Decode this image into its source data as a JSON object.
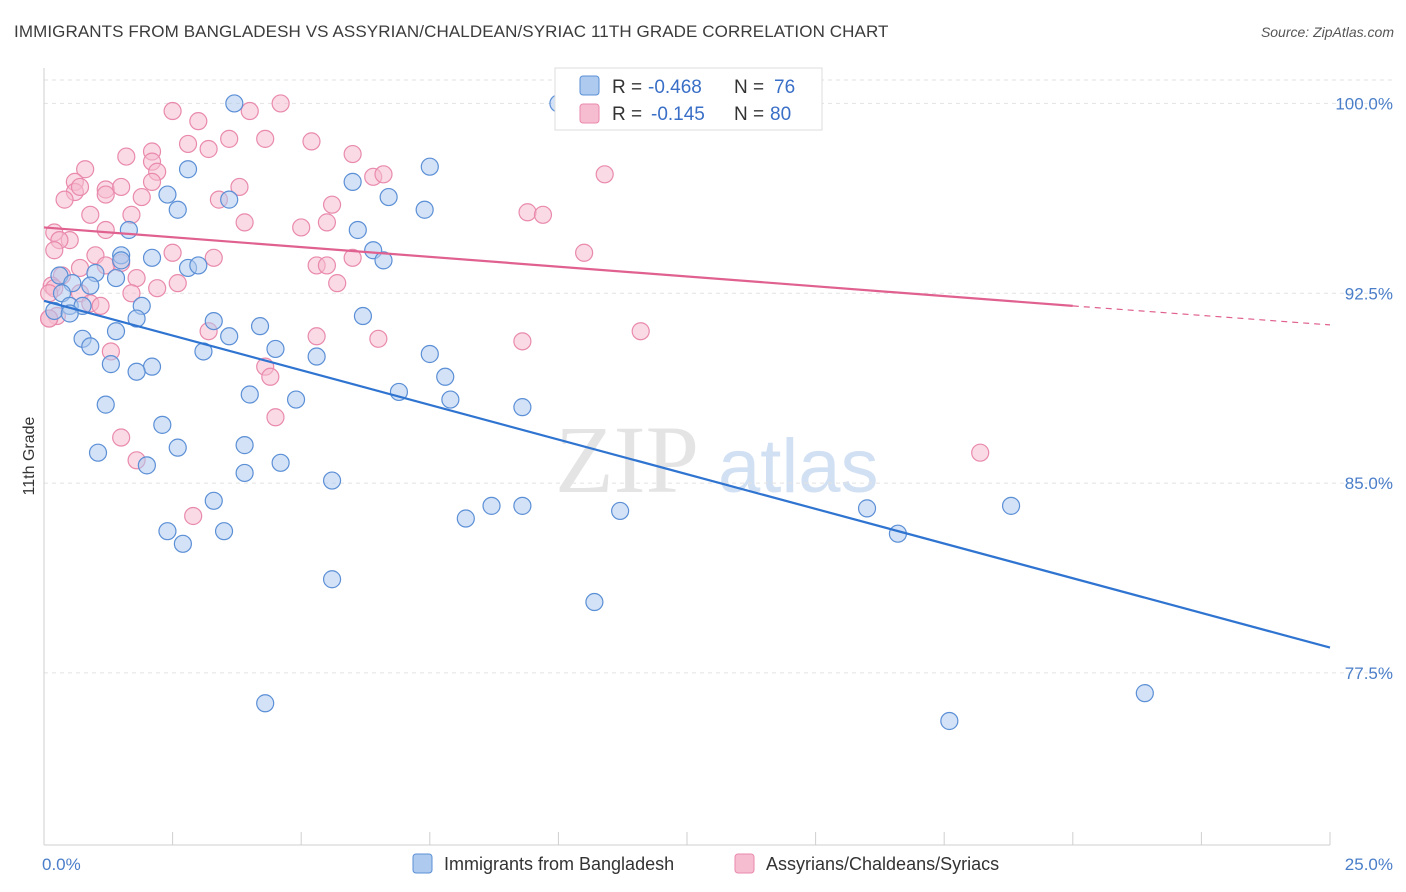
{
  "title": "IMMIGRANTS FROM BANGLADESH VS ASSYRIAN/CHALDEAN/SYRIAC 11TH GRADE CORRELATION CHART",
  "source": "Source: ZipAtlas.com",
  "watermark": {
    "zip": "ZIP",
    "atlas": "atlas"
  },
  "colors": {
    "blue_fill": "#aecbef",
    "blue_stroke": "#5b8fd6",
    "blue_line": "#2f74d0",
    "pink_fill": "#f6bcd0",
    "pink_stroke": "#e98aac",
    "pink_line": "#e0618f"
  },
  "chart_data": {
    "type": "scatter",
    "title": "IMMIGRANTS FROM BANGLADESH VS ASSYRIAN/CHALDEAN/SYRIAC 11TH GRADE CORRELATION CHART",
    "xlabel": "",
    "ylabel": "11th Grade",
    "xlim": [
      0,
      25
    ],
    "ylim": [
      70.7,
      101.4
    ],
    "x_tick_labels": [
      "0.0%",
      "25.0%"
    ],
    "y_ticks": [
      77.5,
      85.0,
      92.5,
      100.0
    ],
    "y_tick_labels": [
      "77.5%",
      "85.0%",
      "92.5%",
      "100.0%"
    ],
    "legend": [
      {
        "label_r": "R =",
        "r": "-0.468",
        "label_n": "N =",
        "n": "76"
      },
      {
        "label_r": "R =",
        "r": "-0.145",
        "label_n": "N =",
        "n": "80"
      }
    ],
    "series": [
      {
        "name": "Immigrants from Bangladesh",
        "trend": {
          "x": [
            0.0,
            25.0
          ],
          "y": [
            92.2,
            78.5
          ]
        },
        "points": [
          [
            3.7,
            100
          ],
          [
            10,
            100
          ],
          [
            2.8,
            97.4
          ],
          [
            7.5,
            97.5
          ],
          [
            6,
            96.9
          ],
          [
            2.4,
            96.4
          ],
          [
            3.6,
            96.2
          ],
          [
            6.7,
            96.3
          ],
          [
            2.6,
            95.8
          ],
          [
            7.4,
            95.8
          ],
          [
            1.65,
            95
          ],
          [
            6.1,
            95
          ],
          [
            6.4,
            94.2
          ],
          [
            1.5,
            94
          ],
          [
            2.1,
            93.9
          ],
          [
            1.5,
            93.8
          ],
          [
            6.6,
            93.8
          ],
          [
            2.8,
            93.5
          ],
          [
            3,
            93.6
          ],
          [
            0.3,
            93.2
          ],
          [
            0.55,
            92.9
          ],
          [
            1,
            93.3
          ],
          [
            1.4,
            93.1
          ],
          [
            0.9,
            92.8
          ],
          [
            0.35,
            92.5
          ],
          [
            0.5,
            92
          ],
          [
            0.75,
            92
          ],
          [
            0.2,
            91.8
          ],
          [
            1.9,
            92
          ],
          [
            0.5,
            91.7
          ],
          [
            1.8,
            91.5
          ],
          [
            3.3,
            91.4
          ],
          [
            6.2,
            91.6
          ],
          [
            4.2,
            91.2
          ],
          [
            1.4,
            91
          ],
          [
            3.6,
            90.8
          ],
          [
            0.75,
            90.7
          ],
          [
            0.9,
            90.4
          ],
          [
            4.5,
            90.3
          ],
          [
            3.1,
            90.2
          ],
          [
            5.3,
            90
          ],
          [
            7.5,
            90.1
          ],
          [
            1.3,
            89.7
          ],
          [
            2.1,
            89.6
          ],
          [
            1.8,
            89.4
          ],
          [
            7.8,
            89.2
          ],
          [
            4,
            88.5
          ],
          [
            6.9,
            88.6
          ],
          [
            4.9,
            88.3
          ],
          [
            7.9,
            88.3
          ],
          [
            1.2,
            88.1
          ],
          [
            9.3,
            88
          ],
          [
            2.3,
            87.3
          ],
          [
            2.6,
            86.4
          ],
          [
            3.9,
            86.5
          ],
          [
            1.05,
            86.2
          ],
          [
            4.6,
            85.8
          ],
          [
            2,
            85.7
          ],
          [
            3.9,
            85.4
          ],
          [
            5.6,
            85.1
          ],
          [
            3.3,
            84.3
          ],
          [
            8.7,
            84.1
          ],
          [
            8.2,
            83.6
          ],
          [
            9.3,
            84.1
          ],
          [
            11.2,
            83.9
          ],
          [
            16,
            84
          ],
          [
            18.8,
            84.1
          ],
          [
            2.4,
            83.1
          ],
          [
            3.5,
            83.1
          ],
          [
            2.7,
            82.6
          ],
          [
            16.6,
            83
          ],
          [
            5.6,
            81.2
          ],
          [
            10.7,
            80.3
          ],
          [
            4.3,
            76.3
          ],
          [
            21.4,
            76.7
          ],
          [
            17.6,
            75.6
          ]
        ]
      },
      {
        "name": "Assyrians/Chaldeans/Syriacs",
        "trend": {
          "x": [
            0.0,
            20.0
          ],
          "y": [
            95.1,
            92.0
          ]
        },
        "trend_dashed": {
          "x": [
            20.0,
            25.0
          ],
          "y": [
            92.0,
            91.25
          ]
        },
        "points": [
          [
            4.6,
            100
          ],
          [
            2.5,
            99.7
          ],
          [
            4,
            99.7
          ],
          [
            3,
            99.3
          ],
          [
            3.6,
            98.6
          ],
          [
            4.3,
            98.6
          ],
          [
            5.2,
            98.5
          ],
          [
            2.8,
            98.4
          ],
          [
            2.1,
            98.1
          ],
          [
            3.2,
            98.2
          ],
          [
            1.6,
            97.9
          ],
          [
            6,
            98
          ],
          [
            0.8,
            97.4
          ],
          [
            2.1,
            97.7
          ],
          [
            2.2,
            97.3
          ],
          [
            6.4,
            97.1
          ],
          [
            6.6,
            97.2
          ],
          [
            10.9,
            97.2
          ],
          [
            0.6,
            96.9
          ],
          [
            1.2,
            96.6
          ],
          [
            0.6,
            96.5
          ],
          [
            0.7,
            96.7
          ],
          [
            2.1,
            96.9
          ],
          [
            3.8,
            96.7
          ],
          [
            1.5,
            96.7
          ],
          [
            1.2,
            96.4
          ],
          [
            1.9,
            96.3
          ],
          [
            3.4,
            96.2
          ],
          [
            0.4,
            96.2
          ],
          [
            5.6,
            96
          ],
          [
            0.9,
            95.6
          ],
          [
            1.7,
            95.6
          ],
          [
            3.9,
            95.3
          ],
          [
            5.5,
            95.3
          ],
          [
            9.4,
            95.7
          ],
          [
            9.7,
            95.6
          ],
          [
            1.2,
            95
          ],
          [
            5,
            95.1
          ],
          [
            0.2,
            94.9
          ],
          [
            0.5,
            94.6
          ],
          [
            0.3,
            94.6
          ],
          [
            0.2,
            94.2
          ],
          [
            1,
            94
          ],
          [
            2.5,
            94.1
          ],
          [
            3.3,
            93.9
          ],
          [
            6,
            93.9
          ],
          [
            1.5,
            93.7
          ],
          [
            5.3,
            93.6
          ],
          [
            5.5,
            93.6
          ],
          [
            10.5,
            94.1
          ],
          [
            0.35,
            93.2
          ],
          [
            0.7,
            93.5
          ],
          [
            1.2,
            93.6
          ],
          [
            1.8,
            93.1
          ],
          [
            2.6,
            92.9
          ],
          [
            2.2,
            92.7
          ],
          [
            5.7,
            92.9
          ],
          [
            0.15,
            92.8
          ],
          [
            0.2,
            92.7
          ],
          [
            0.1,
            92.5
          ],
          [
            0.7,
            92.5
          ],
          [
            1.7,
            92.5
          ],
          [
            0.9,
            92.1
          ],
          [
            1.1,
            92
          ],
          [
            0.25,
            91.6
          ],
          [
            0.1,
            91.5
          ],
          [
            3.2,
            91
          ],
          [
            5.3,
            90.8
          ],
          [
            6.5,
            90.7
          ],
          [
            9.3,
            90.6
          ],
          [
            11.6,
            91
          ],
          [
            1.3,
            90.2
          ],
          [
            4.3,
            89.6
          ],
          [
            4.4,
            89.2
          ],
          [
            4.5,
            87.6
          ],
          [
            1.5,
            86.8
          ],
          [
            1.8,
            85.9
          ],
          [
            18.2,
            86.2
          ],
          [
            2.9,
            83.7
          ],
          [
            0.1,
            91.5
          ]
        ]
      }
    ]
  },
  "bottom_legend": [
    "Immigrants from Bangladesh",
    "Assyrians/Chaldeans/Syriacs"
  ]
}
